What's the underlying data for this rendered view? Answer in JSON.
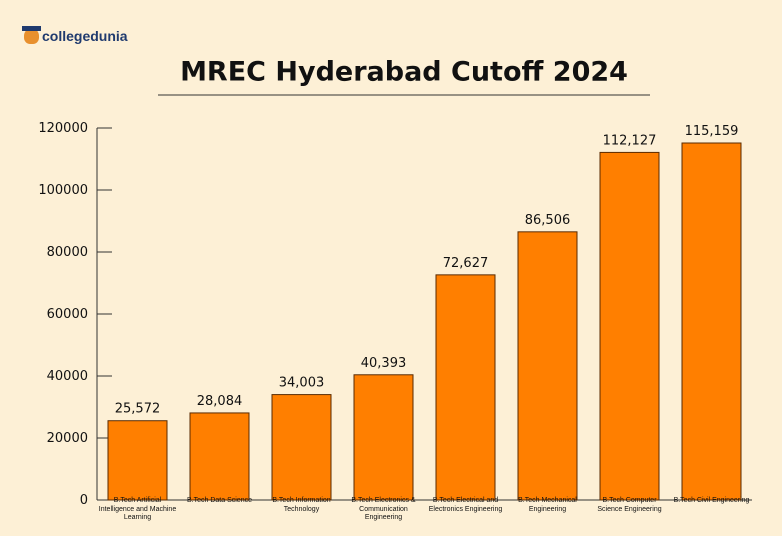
{
  "logo": "collegedunia",
  "chart_data": {
    "type": "bar",
    "title": "MREC Hyderabad Cutoff 2024",
    "categories": [
      "B.Tech Artificial Intelligence and Machine Learning",
      "B.Tech Data Science",
      "B.Tech Information Technology",
      "B.Tech Electronics & Communication Engineering",
      "B.Tech Electrical and Electronics Engineering",
      "B.Tech Mechanical Engineering",
      "B.Tech Computer Science Engineering",
      "B.Tech Civil Engineering"
    ],
    "values": [
      25572,
      28084,
      34003,
      40393,
      72627,
      86506,
      112127,
      115159
    ],
    "value_labels": [
      "25,572",
      "28,084",
      "34,003",
      "40,393",
      "72,627",
      "86,506",
      "112,127",
      "115,159"
    ],
    "color": "#ff7f00",
    "ylim": [
      0,
      120000
    ],
    "yticks": [
      0,
      20000,
      40000,
      60000,
      80000,
      100000,
      120000
    ],
    "grid": false
  }
}
